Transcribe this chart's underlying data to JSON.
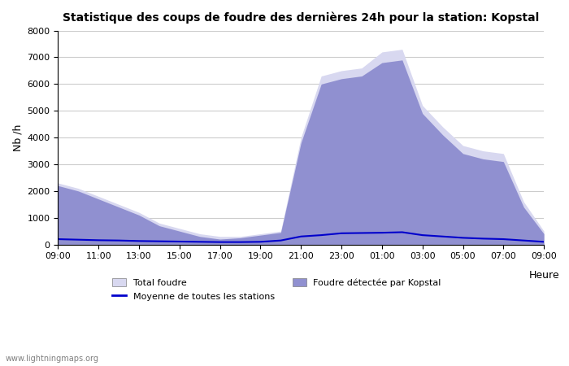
{
  "title": "Statistique des coups de foudre des dernières 24h pour la station: Kopstal",
  "xlabel": "Heure",
  "ylabel": "Nb /h",
  "watermark": "www.lightningmaps.org",
  "ylim": [
    0,
    8000
  ],
  "yticks": [
    0,
    1000,
    2000,
    3000,
    4000,
    5000,
    6000,
    7000,
    8000
  ],
  "xtick_labels": [
    "09:00",
    "11:00",
    "13:00",
    "15:00",
    "17:00",
    "19:00",
    "21:00",
    "23:00",
    "01:00",
    "03:00",
    "05:00",
    "07:00",
    "09:00"
  ],
  "legend": {
    "total_foudre_color": "#d8d8f0",
    "kopstal_color": "#9090d0",
    "moyenne_color": "#0000cc"
  },
  "background_color": "#ffffff",
  "grid_color": "#cccccc",
  "hours": [
    0,
    1,
    2,
    3,
    4,
    5,
    6,
    7,
    8,
    9,
    10,
    11,
    12,
    13,
    14,
    15,
    16,
    17,
    18,
    19,
    20,
    21,
    22,
    23,
    24
  ],
  "total_foudre": [
    2300,
    2100,
    1800,
    1500,
    1200,
    800,
    600,
    400,
    300,
    300,
    400,
    500,
    4000,
    6300,
    6500,
    6600,
    7200,
    7300,
    5200,
    4400,
    3700,
    3500,
    3400,
    1600,
    500
  ],
  "kopstal": [
    2200,
    2000,
    1700,
    1400,
    1100,
    700,
    500,
    300,
    200,
    250,
    350,
    450,
    3800,
    6000,
    6200,
    6300,
    6800,
    6900,
    4900,
    4100,
    3400,
    3200,
    3100,
    1400,
    400
  ],
  "moyenne": [
    200,
    180,
    160,
    150,
    130,
    120,
    110,
    100,
    90,
    90,
    100,
    150,
    300,
    350,
    420,
    430,
    440,
    460,
    350,
    300,
    250,
    220,
    200,
    150,
    100
  ]
}
